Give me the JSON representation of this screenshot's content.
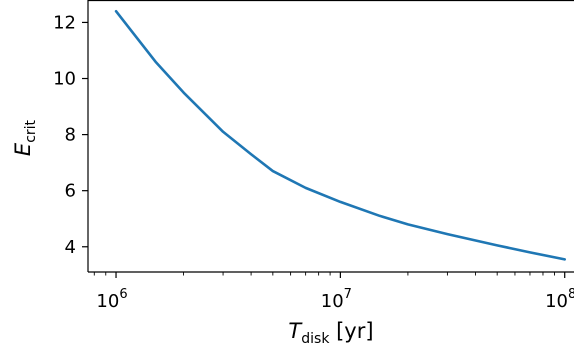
{
  "chart_data": {
    "type": "line",
    "xscale": "log",
    "xlim": [
      750000.0,
      110000000.0
    ],
    "ylim": [
      3.1,
      12.8
    ],
    "xlabel": {
      "main": "T",
      "sub": "disk",
      "unit": " [yr]"
    },
    "ylabel": {
      "main": "E",
      "sub": "crit"
    },
    "grid": false,
    "xticks": [
      {
        "value": 1000000,
        "base": "10",
        "exp": "6"
      },
      {
        "value": 10000000,
        "base": "10",
        "exp": "7"
      },
      {
        "value": 100000000,
        "base": "10",
        "exp": "8"
      }
    ],
    "yticks": [
      4,
      6,
      8,
      10,
      12
    ],
    "series": [
      {
        "color": "#1f77b4",
        "x": [
          1000000,
          1500000,
          2000000,
          3000000,
          4000000,
          5000000,
          7000000,
          10000000,
          15000000,
          20000000,
          30000000,
          50000000,
          70000000,
          100000000
        ],
        "y": [
          12.4,
          10.6,
          9.5,
          8.1,
          7.3,
          6.7,
          6.1,
          5.6,
          5.1,
          4.8,
          4.45,
          4.05,
          3.8,
          3.55
        ]
      }
    ]
  }
}
